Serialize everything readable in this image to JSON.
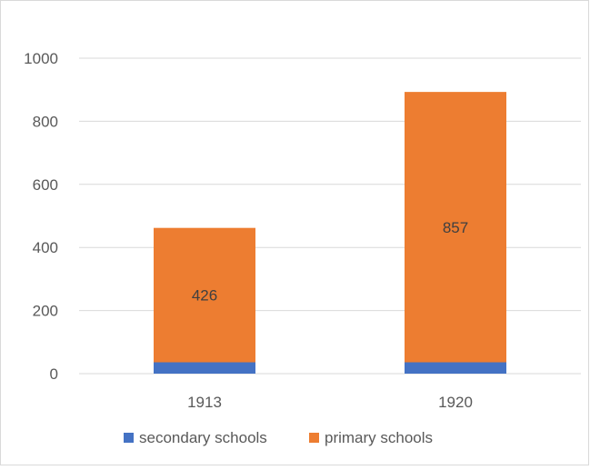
{
  "chart_data": {
    "type": "bar",
    "stacked": true,
    "categories": [
      "1913",
      "1920"
    ],
    "series": [
      {
        "name": "secondary schools",
        "values": [
          36,
          36
        ],
        "color": "#4472C4"
      },
      {
        "name": "primary schools",
        "values": [
          426,
          857
        ],
        "color": "#ED7D31",
        "data_labels": [
          "426",
          "857"
        ]
      }
    ],
    "ylim": [
      0,
      1000
    ],
    "yticks": [
      0,
      200,
      400,
      600,
      800,
      1000
    ],
    "grid": true,
    "legend_position": "bottom",
    "title": "",
    "xlabel": "",
    "ylabel": ""
  }
}
